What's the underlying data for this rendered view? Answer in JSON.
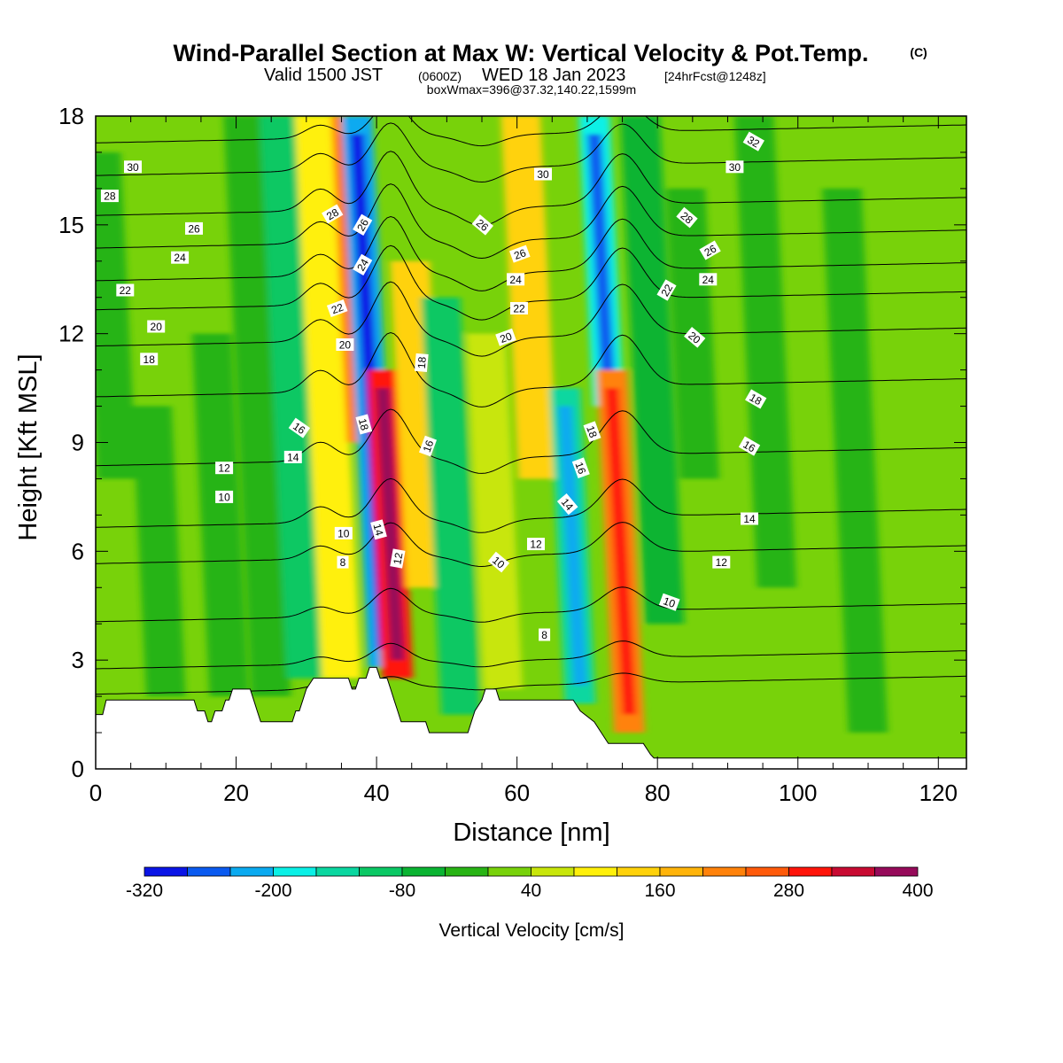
{
  "title": {
    "main": "Wind-Parallel Section at Max W: Vertical Velocity & Pot.Temp.",
    "copyright": "(C)",
    "valid_prefix": "Valid 1500 JST",
    "valid_z": "(0600Z)",
    "valid_date": "WED 18 Jan 2023",
    "forecast": "[24hrFcst@1248z]",
    "boxwmax": "boxWmax=396@37.32,140.22,1599m"
  },
  "chart_data": {
    "type": "heatmap",
    "xlabel": "Distance [nm]",
    "ylabel": "Height [Kft MSL]",
    "xlim": [
      0,
      124
    ],
    "ylim": [
      0,
      18
    ],
    "x_ticks": [
      0,
      20,
      40,
      60,
      80,
      100,
      120
    ],
    "y_ticks": [
      0,
      3,
      6,
      9,
      12,
      15,
      18
    ],
    "colorbar": {
      "title": "Vertical Velocity [cm/s]",
      "levels": [
        -320,
        -280,
        -240,
        -200,
        -160,
        -120,
        -80,
        -40,
        0,
        40,
        80,
        120,
        160,
        200,
        240,
        280,
        320,
        360,
        400
      ],
      "labels": [
        "-320",
        "-200",
        "-80",
        "40",
        "160",
        "280",
        "400"
      ],
      "label_values": [
        -320,
        -200,
        -80,
        40,
        160,
        280,
        400
      ],
      "colors": [
        "#0a14e6",
        "#0a5af0",
        "#0aaaf0",
        "#0af0e6",
        "#0ad7a0",
        "#0ac864",
        "#0ab432",
        "#28b414",
        "#78d20a",
        "#c8e60a",
        "#fff00a",
        "#ffd20a",
        "#ffb40a",
        "#ff820a",
        "#ff5a0a",
        "#ff140a",
        "#c80a32",
        "#960a5a",
        "#5a0a96"
      ]
    },
    "background_level": 20,
    "velocity_bands": [
      {
        "x": 3,
        "h0": 8,
        "h1": 17,
        "value": -10
      },
      {
        "x": 10,
        "h0": 2,
        "h1": 10,
        "value": -20
      },
      {
        "x": 19,
        "h0": 2,
        "h1": 12,
        "value": -25
      },
      {
        "x": 25,
        "h0": 2,
        "h1": 18,
        "value": -40
      },
      {
        "x": 30,
        "h0": 2.5,
        "h1": 18,
        "value": -90
      },
      {
        "x": 35,
        "h0": 2.5,
        "h1": 18,
        "value": 90
      },
      {
        "x": 38,
        "h0": 9,
        "h1": 18,
        "value": 230
      },
      {
        "x": 41,
        "h0": 2.8,
        "h1": 18,
        "value": -230
      },
      {
        "x": 43,
        "h0": 2.5,
        "h1": 11,
        "value": 300
      },
      {
        "x": 47,
        "h0": 5,
        "h1": 14,
        "value": 140
      },
      {
        "x": 52,
        "h0": 1.5,
        "h1": 13,
        "value": -100
      },
      {
        "x": 58,
        "h0": 2.2,
        "h1": 12,
        "value": 60
      },
      {
        "x": 63,
        "h0": 8,
        "h1": 18,
        "value": 150
      },
      {
        "x": 69,
        "h0": 1.8,
        "h1": 10.5,
        "value": -160
      },
      {
        "x": 73,
        "h0": 10,
        "h1": 18,
        "value": -170
      },
      {
        "x": 76,
        "h0": 1,
        "h1": 11,
        "value": 220
      },
      {
        "x": 81,
        "h0": 4,
        "h1": 18,
        "value": -60
      },
      {
        "x": 86,
        "h0": 8,
        "h1": 16,
        "value": -30
      },
      {
        "x": 97,
        "h0": 5,
        "h1": 18,
        "value": -20
      },
      {
        "x": 110,
        "h0": 1,
        "h1": 16,
        "value": -25
      }
    ],
    "terrain_kft": [
      [
        0,
        1.5
      ],
      [
        1,
        1.5
      ],
      [
        1.5,
        1.9
      ],
      [
        14,
        1.9
      ],
      [
        14.5,
        1.6
      ],
      [
        15.5,
        1.6
      ],
      [
        16,
        1.3
      ],
      [
        16.5,
        1.3
      ],
      [
        17,
        1.6
      ],
      [
        18,
        1.6
      ],
      [
        18.5,
        1.9
      ],
      [
        19,
        1.9
      ],
      [
        19.5,
        2.2
      ],
      [
        22,
        2.2
      ],
      [
        22.5,
        1.9
      ],
      [
        23,
        1.6
      ],
      [
        23.5,
        1.3
      ],
      [
        28,
        1.3
      ],
      [
        28.5,
        1.6
      ],
      [
        29,
        1.6
      ],
      [
        29.5,
        1.9
      ],
      [
        30,
        2.2
      ],
      [
        31,
        2.5
      ],
      [
        36,
        2.5
      ],
      [
        36.5,
        2.2
      ],
      [
        37,
        2.2
      ],
      [
        37.5,
        2.5
      ],
      [
        38.5,
        2.5
      ],
      [
        39,
        2.8
      ],
      [
        40,
        2.8
      ],
      [
        40.5,
        2.5
      ],
      [
        41.5,
        2.5
      ],
      [
        42,
        2.2
      ],
      [
        42.5,
        1.9
      ],
      [
        43,
        1.6
      ],
      [
        43.5,
        1.3
      ],
      [
        47,
        1.3
      ],
      [
        47.5,
        1.0
      ],
      [
        53,
        1.0
      ],
      [
        53.5,
        1.3
      ],
      [
        54,
        1.6
      ],
      [
        55,
        1.9
      ],
      [
        55.5,
        2.2
      ],
      [
        57,
        2.2
      ],
      [
        57.5,
        1.9
      ],
      [
        68,
        1.9
      ],
      [
        69,
        1.6
      ],
      [
        71,
        1.3
      ],
      [
        72,
        1.0
      ],
      [
        73,
        0.7
      ],
      [
        78,
        0.7
      ],
      [
        79,
        0.4
      ],
      [
        79.5,
        0.3
      ],
      [
        124,
        0.3
      ]
    ],
    "isentropes": [
      {
        "level": 6,
        "y0": 2.3,
        "amp": 0.3
      },
      {
        "level": 8,
        "y0": 3.0,
        "amp": 0.5
      },
      {
        "level": 10,
        "y0": 4.3,
        "amp": 0.7
      },
      {
        "level": 12,
        "y0": 5.9,
        "amp": 0.9
      },
      {
        "level": 14,
        "y0": 6.9,
        "amp": 1.1
      },
      {
        "level": 16,
        "y0": 8.6,
        "amp": 1.3
      },
      {
        "level": 18,
        "y0": 10.5,
        "amp": 1.5
      },
      {
        "level": 20,
        "y0": 11.9,
        "amp": 1.5
      },
      {
        "level": 22,
        "y0": 12.9,
        "amp": 1.5
      },
      {
        "level": 24,
        "y0": 13.7,
        "amp": 1.5
      },
      {
        "level": 26,
        "y0": 14.6,
        "amp": 1.5
      },
      {
        "level": 28,
        "y0": 15.5,
        "amp": 1.5
      },
      {
        "level": 30,
        "y0": 16.6,
        "amp": 1.2
      },
      {
        "level": 32,
        "y0": 17.5,
        "amp": 0.9
      }
    ],
    "contour_labels": [
      {
        "text": "30",
        "x": 5.3,
        "y": 16.6,
        "rot": 0
      },
      {
        "text": "28",
        "x": 2.0,
        "y": 15.8,
        "rot": 0
      },
      {
        "text": "26",
        "x": 14.0,
        "y": 14.9,
        "rot": 0
      },
      {
        "text": "24",
        "x": 12.0,
        "y": 14.1,
        "rot": 0
      },
      {
        "text": "22",
        "x": 4.2,
        "y": 13.2,
        "rot": 0
      },
      {
        "text": "20",
        "x": 8.6,
        "y": 12.2,
        "rot": 0
      },
      {
        "text": "18",
        "x": 7.6,
        "y": 11.3,
        "rot": 0
      },
      {
        "text": "12",
        "x": 18.3,
        "y": 8.3,
        "rot": 0
      },
      {
        "text": "10",
        "x": 18.3,
        "y": 7.5,
        "rot": 0
      },
      {
        "text": "16",
        "x": 29.0,
        "y": 9.4,
        "rot": 35
      },
      {
        "text": "14",
        "x": 28.1,
        "y": 8.6,
        "rot": 0
      },
      {
        "text": "28",
        "x": 33.7,
        "y": 15.3,
        "rot": -30
      },
      {
        "text": "26",
        "x": 38.0,
        "y": 15.0,
        "rot": -60
      },
      {
        "text": "24",
        "x": 38.0,
        "y": 13.9,
        "rot": -60
      },
      {
        "text": "22",
        "x": 34.4,
        "y": 12.7,
        "rot": -20
      },
      {
        "text": "20",
        "x": 35.5,
        "y": 11.7,
        "rot": 0
      },
      {
        "text": "18",
        "x": 38.2,
        "y": 9.5,
        "rot": 75
      },
      {
        "text": "10",
        "x": 35.3,
        "y": 6.5,
        "rot": 0
      },
      {
        "text": "8",
        "x": 35.2,
        "y": 5.7,
        "rot": 0
      },
      {
        "text": "14",
        "x": 40.3,
        "y": 6.6,
        "rot": 75
      },
      {
        "text": "12",
        "x": 43.0,
        "y": 5.8,
        "rot": -80
      },
      {
        "text": "18",
        "x": 46.4,
        "y": 11.2,
        "rot": -85
      },
      {
        "text": "16",
        "x": 47.3,
        "y": 8.9,
        "rot": -70
      },
      {
        "text": "26",
        "x": 55.1,
        "y": 15.0,
        "rot": 40
      },
      {
        "text": "26",
        "x": 60.4,
        "y": 14.2,
        "rot": -20
      },
      {
        "text": "24",
        "x": 59.8,
        "y": 13.5,
        "rot": 0
      },
      {
        "text": "22",
        "x": 60.3,
        "y": 12.7,
        "rot": 0
      },
      {
        "text": "20",
        "x": 58.4,
        "y": 11.9,
        "rot": -20
      },
      {
        "text": "10",
        "x": 57.4,
        "y": 5.7,
        "rot": 40
      },
      {
        "text": "12",
        "x": 62.7,
        "y": 6.2,
        "rot": 0
      },
      {
        "text": "8",
        "x": 63.9,
        "y": 3.7,
        "rot": 0
      },
      {
        "text": "30",
        "x": 63.7,
        "y": 16.4,
        "rot": 0
      },
      {
        "text": "18",
        "x": 70.7,
        "y": 9.3,
        "rot": 70
      },
      {
        "text": "16",
        "x": 69.1,
        "y": 8.3,
        "rot": 70
      },
      {
        "text": "14",
        "x": 67.2,
        "y": 7.3,
        "rot": 50
      },
      {
        "text": "28",
        "x": 84.2,
        "y": 15.2,
        "rot": 40
      },
      {
        "text": "26",
        "x": 87.5,
        "y": 14.3,
        "rot": -30
      },
      {
        "text": "24",
        "x": 87.2,
        "y": 13.5,
        "rot": 0
      },
      {
        "text": "22",
        "x": 81.3,
        "y": 13.2,
        "rot": -60
      },
      {
        "text": "20",
        "x": 85.3,
        "y": 11.9,
        "rot": 40
      },
      {
        "text": "32",
        "x": 93.7,
        "y": 17.3,
        "rot": 30
      },
      {
        "text": "30",
        "x": 91.0,
        "y": 16.6,
        "rot": 0
      },
      {
        "text": "18",
        "x": 94.0,
        "y": 10.2,
        "rot": 30
      },
      {
        "text": "16",
        "x": 93.1,
        "y": 8.9,
        "rot": 30
      },
      {
        "text": "14",
        "x": 93.1,
        "y": 6.9,
        "rot": 0
      },
      {
        "text": "12",
        "x": 89.1,
        "y": 5.7,
        "rot": 0
      },
      {
        "text": "10",
        "x": 81.7,
        "y": 4.6,
        "rot": 20
      }
    ]
  }
}
